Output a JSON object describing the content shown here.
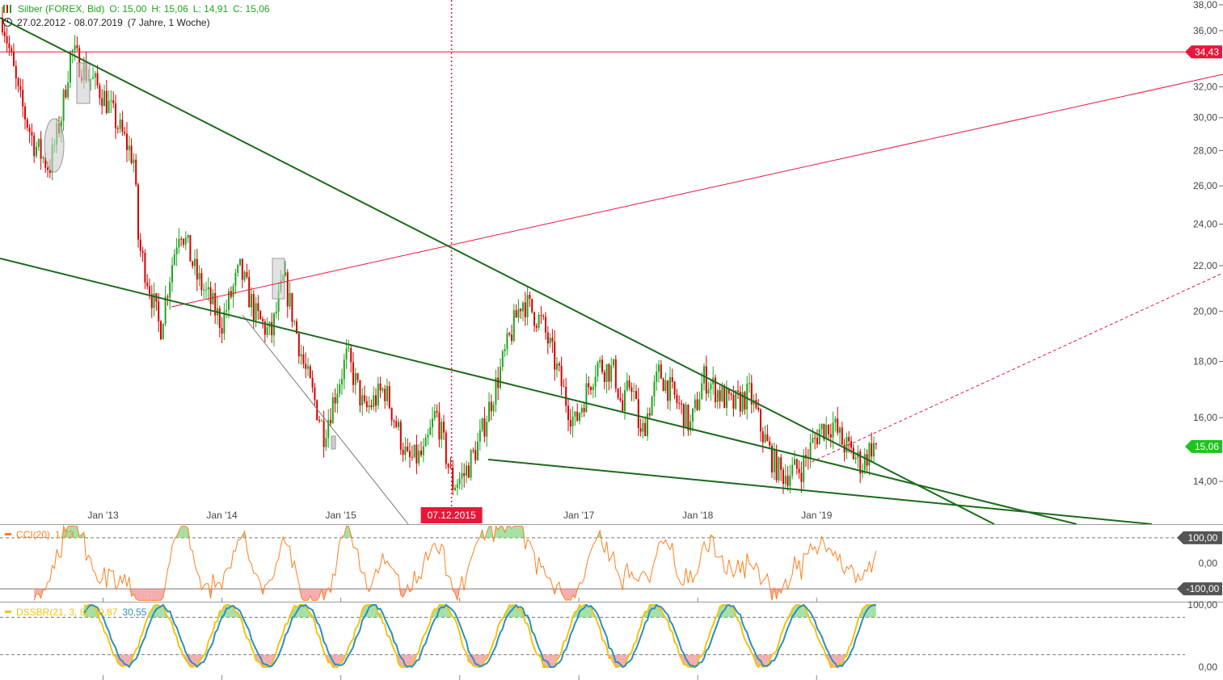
{
  "instrument": {
    "name": "Silber (FOREX, Bid)",
    "open": "O: 15,00",
    "high": "H: 15,06",
    "low": "L: 14,91",
    "close": "C: 15,06",
    "range": "27.02.2012 - 08.07.2019",
    "duration": "(7 Jahre, 1 Woche)",
    "icon": "candlestick-bars-icon"
  },
  "colors": {
    "up": "#1fa51f",
    "down": "#d40000",
    "trendline": "#1a6b1a",
    "resistance": "#e8173a",
    "cci": "#ff7f1e",
    "dss_main": "#f1c40f",
    "dss_signal": "#2a8fc0"
  },
  "chart_data": [
    {
      "type": "candlestick",
      "title": "Silber (FOREX, Bid)",
      "scale": "log",
      "ylim": [
        12.8,
        38.0
      ],
      "y_ticks": [
        "38,00",
        "36,00",
        "32,00",
        "30,00",
        "28,00",
        "26,00",
        "24,00",
        "22,00",
        "20,00",
        "18,00",
        "16,00",
        "14,00"
      ],
      "x_ticks": [
        "Jan '13",
        "Jan '14",
        "Jan '15",
        "Jan '17",
        "Jan '18",
        "Jan '19"
      ],
      "x_range": [
        "2012-02-27",
        "2019-07-08"
      ],
      "price_path": [
        [
          "2012-02-27",
          37.0
        ],
        [
          "2012-04-15",
          31.5
        ],
        [
          "2012-06-01",
          28.5
        ],
        [
          "2012-07-20",
          27.0
        ],
        [
          "2012-08-25",
          30.0
        ],
        [
          "2012-09-25",
          34.5
        ],
        [
          "2012-11-15",
          32.8
        ],
        [
          "2013-01-01",
          31.5
        ],
        [
          "2013-02-15",
          29.5
        ],
        [
          "2013-04-05",
          27.5
        ],
        [
          "2013-04-20",
          23.0
        ],
        [
          "2013-06-25",
          19.2
        ],
        [
          "2013-08-25",
          24.0
        ],
        [
          "2013-10-15",
          21.5
        ],
        [
          "2013-12-31",
          19.5
        ],
        [
          "2014-02-25",
          21.8
        ],
        [
          "2014-04-15",
          19.8
        ],
        [
          "2014-06-01",
          19.0
        ],
        [
          "2014-07-10",
          21.4
        ],
        [
          "2014-09-10",
          17.8
        ],
        [
          "2014-11-10",
          15.5
        ],
        [
          "2015-01-20",
          18.2
        ],
        [
          "2015-03-15",
          16.2
        ],
        [
          "2015-05-15",
          17.0
        ],
        [
          "2015-07-25",
          14.6
        ],
        [
          "2015-09-15",
          14.8
        ],
        [
          "2015-10-20",
          16.2
        ],
        [
          "2015-12-10",
          13.9
        ],
        [
          "2016-01-15",
          14.2
        ],
        [
          "2016-03-01",
          15.2
        ],
        [
          "2016-05-01",
          17.5
        ],
        [
          "2016-07-10",
          20.5
        ],
        [
          "2016-09-10",
          19.5
        ],
        [
          "2016-11-25",
          16.5
        ],
        [
          "2016-12-20",
          15.8
        ],
        [
          "2017-02-25",
          17.9
        ],
        [
          "2017-04-20",
          17.6
        ],
        [
          "2017-05-15",
          16.2
        ],
        [
          "2017-06-10",
          17.4
        ],
        [
          "2017-07-10",
          15.3
        ],
        [
          "2017-09-05",
          17.6
        ],
        [
          "2017-10-15",
          16.8
        ],
        [
          "2017-12-10",
          15.7
        ],
        [
          "2018-01-20",
          17.4
        ],
        [
          "2018-04-15",
          16.4
        ],
        [
          "2018-06-10",
          16.8
        ],
        [
          "2018-07-15",
          15.6
        ],
        [
          "2018-08-20",
          14.6
        ],
        [
          "2018-09-15",
          14.2
        ],
        [
          "2018-11-15",
          14.4
        ],
        [
          "2019-01-10",
          15.6
        ],
        [
          "2019-02-20",
          15.8
        ],
        [
          "2019-03-20",
          15.2
        ],
        [
          "2019-05-20",
          14.5
        ],
        [
          "2019-06-20",
          15.1
        ],
        [
          "2019-07-08",
          15.06
        ]
      ],
      "annotations": {
        "resistance_level": 34.43,
        "resistance_label": "34,43",
        "current_price_label": "15,06",
        "event_date": "2015-12-07",
        "event_label": "07.12.2015"
      }
    },
    {
      "type": "line",
      "title": "CCI(20)",
      "value_label": "1,73",
      "ylim": [
        -150,
        150
      ],
      "levels": [
        100,
        0,
        -100
      ],
      "level_labels": [
        "100,00",
        "0,00",
        "-100,00"
      ]
    },
    {
      "type": "line",
      "title": "DSSBR(21, 3, 8)",
      "values_label": [
        "39,87",
        "30,55"
      ],
      "ylim": [
        0,
        100
      ],
      "levels": [
        80,
        20
      ],
      "tick_labels": [
        "100,00",
        "0,00"
      ]
    }
  ]
}
